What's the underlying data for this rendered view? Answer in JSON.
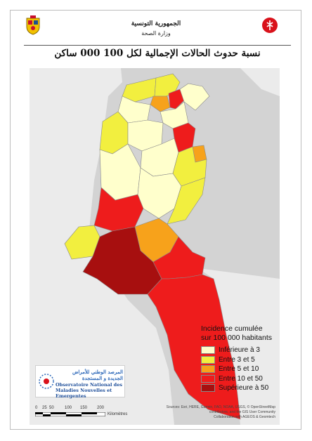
{
  "header": {
    "country": "الجمهورية التونسية",
    "ministry": "وزارة الصحة",
    "title": "نسبة حدوث الحالات الإجمالية لكل 100 000 ساكن"
  },
  "legend": {
    "title_line1": "Incidence cumulée",
    "title_line2": "sur 100 000 habitants",
    "classes": [
      {
        "label": "Inférieure à 3",
        "color": "#ffffcc"
      },
      {
        "label": "Entre 3 et 5",
        "color": "#f2ef3f"
      },
      {
        "label": "Entre 5 et 10",
        "color": "#f7a21b"
      },
      {
        "label": "Entre 10 et 50",
        "color": "#ee1c1c"
      },
      {
        "label": "Supérieure à 50",
        "color": "#a70f0f"
      }
    ]
  },
  "logo": {
    "arabic_line1": "المرصد الوطني للأمراض",
    "arabic_line2": "الجديدة و المستجدة",
    "french_line1": "Observatoire National des",
    "french_line2": "Maladies Nouvelles et Emergentes"
  },
  "scale": {
    "ticks": [
      "0",
      "25",
      "50",
      "100",
      "150",
      "200"
    ],
    "unit": "Kilomètres"
  },
  "sources": {
    "line1": "Sources: Esri, HERE, Garmin, FAO, NOAA, USGS, © OpenStreetMap",
    "line2": "contributors, and the GIS User Community",
    "line3": "Collaboration with AGEOS & Geomtech"
  },
  "colors": {
    "sea": "#d3d3d3",
    "neighbors": "#ebebeb",
    "border": "#777777"
  }
}
